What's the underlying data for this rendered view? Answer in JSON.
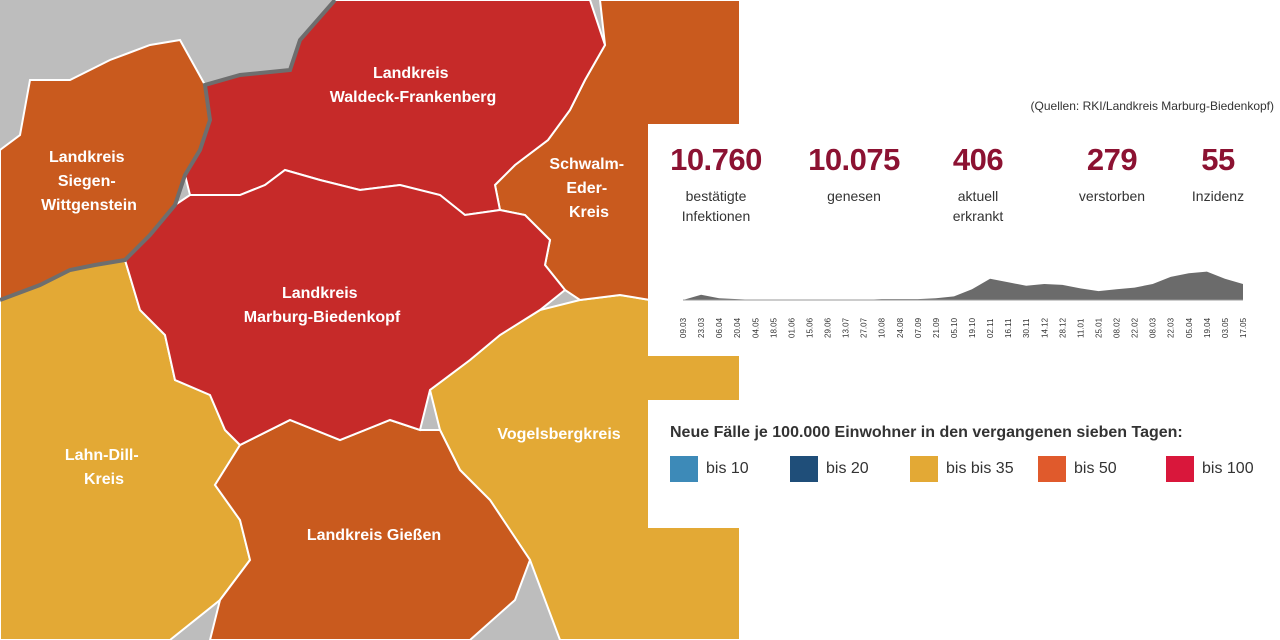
{
  "colors": {
    "grey": "#bdbdbd",
    "red": "#c62a29",
    "orange": "#c95a1e",
    "yellow": "#e3a935",
    "border": "#6e6e6e",
    "value": "#8c1232",
    "sparkline": "#6b6b6b"
  },
  "map": {
    "regions": [
      {
        "id": "waldeck-frankenberg",
        "line1": "Landkreis",
        "line2": "Waldeck-Frankenberg",
        "line3": ""
      },
      {
        "id": "siegen-wittgenstein",
        "line1": "Landkreis",
        "line2": "Siegen-",
        "line3": "Wittgenstein"
      },
      {
        "id": "schwalm-eder",
        "line1": "Schwalm-",
        "line2": "Eder-",
        "line3": "Kreis"
      },
      {
        "id": "marburg-biedenkopf",
        "line1": "Landkreis",
        "line2": "Marburg-Biedenkopf",
        "line3": ""
      },
      {
        "id": "lahn-dill",
        "line1": "Lahn-Dill-",
        "line2": "Kreis",
        "line3": ""
      },
      {
        "id": "vogelsberg",
        "line1": "Vogelsbergkreis",
        "line2": "",
        "line3": ""
      },
      {
        "id": "giessen",
        "line1": "Landkreis Gießen",
        "line2": "",
        "line3": ""
      }
    ]
  },
  "stats": [
    {
      "value": "10.760",
      "label_line1": "bestätigte",
      "label_line2": "Infektionen"
    },
    {
      "value": "10.075",
      "label_line1": "genesen",
      "label_line2": ""
    },
    {
      "value": "406",
      "label_line1": "aktuell",
      "label_line2": "erkrankt"
    },
    {
      "value": "279",
      "label_line1": "verstorben",
      "label_line2": ""
    },
    {
      "value": "55",
      "label_line1": "Inzidenz",
      "label_line2": ""
    }
  ],
  "chart_data": {
    "type": "area",
    "x": [
      "09.03",
      "23.03",
      "06.04",
      "20.04",
      "04.05",
      "18.05",
      "01.06",
      "15.06",
      "29.06",
      "13.07",
      "27.07",
      "10.08",
      "24.08",
      "07.09",
      "21.09",
      "05.10",
      "19.10",
      "02.11",
      "16.11",
      "30.11",
      "14.12",
      "28.12",
      "11.01",
      "25.01",
      "08.02",
      "22.02",
      "08.03",
      "22.03",
      "05.04",
      "19.04",
      "03.05",
      "17.05"
    ],
    "values": [
      0,
      6,
      2,
      1,
      0,
      0,
      0,
      0,
      0,
      0,
      0,
      1,
      1,
      1,
      2,
      4,
      12,
      24,
      20,
      16,
      18,
      17,
      13,
      10,
      12,
      14,
      18,
      26,
      30,
      32,
      24,
      18
    ],
    "ylim": [
      0,
      36
    ]
  },
  "legend": {
    "title": "Neue Fälle je 100.000 Einwohner in den vergangenen sieben Tagen:",
    "items": [
      {
        "label": "bis 10",
        "color": "#3d8ab8"
      },
      {
        "label": "bis 20",
        "color": "#1f4e79"
      },
      {
        "label": "bis bis 35",
        "color": "#e3a935"
      },
      {
        "label": "bis 50",
        "color": "#e05a2c"
      },
      {
        "label": "bis 100",
        "color": "#d9173b"
      }
    ],
    "source": "(Quellen: RKI/Landkreis Marburg-Biedenkopf)"
  }
}
